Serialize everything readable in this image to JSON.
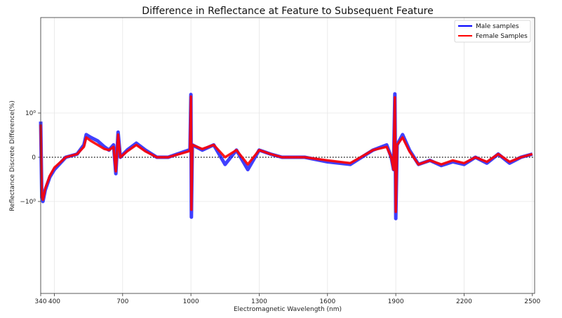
{
  "chart_data": {
    "type": "line",
    "title": "Difference in Reflectance at Feature to Subsequent Feature",
    "xlabel": "Electromagnetic Wavelength (nm)",
    "ylabel": "Reflectance Discrete Difference(%)",
    "x_ticks": [
      340,
      400,
      700,
      1000,
      1300,
      1600,
      1900,
      2200,
      2500
    ],
    "y_ticks": [
      "10⁰",
      "0",
      "−10⁰"
    ],
    "y_scale": "symlog",
    "grid": true,
    "legend_position": "top-right",
    "reference_line": {
      "y": 0,
      "style": "dotted"
    },
    "series": [
      {
        "name": "Male samples",
        "color": "#0000ff",
        "points": [
          [
            340,
            0.6
          ],
          [
            345,
            -0.8
          ],
          [
            350,
            -1.0
          ],
          [
            360,
            -0.5
          ],
          [
            380,
            -0.2
          ],
          [
            400,
            -0.1
          ],
          [
            450,
            0.0
          ],
          [
            500,
            0.02
          ],
          [
            530,
            0.1
          ],
          [
            540,
            0.25
          ],
          [
            560,
            0.2
          ],
          [
            590,
            0.15
          ],
          [
            620,
            0.08
          ],
          [
            640,
            0.05
          ],
          [
            660,
            0.1
          ],
          [
            670,
            -0.15
          ],
          [
            680,
            0.3
          ],
          [
            690,
            0.0
          ],
          [
            720,
            0.05
          ],
          [
            760,
            0.12
          ],
          [
            800,
            0.05
          ],
          [
            850,
            0.0
          ],
          [
            900,
            0.0
          ],
          [
            990,
            0.05
          ],
          [
            996,
            0.05
          ],
          [
            1000,
            2.8
          ],
          [
            1002,
            -2.4
          ],
          [
            1006,
            0.1
          ],
          [
            1050,
            0.05
          ],
          [
            1100,
            0.1
          ],
          [
            1150,
            -0.05
          ],
          [
            1200,
            0.05
          ],
          [
            1250,
            -0.1
          ],
          [
            1300,
            0.05
          ],
          [
            1350,
            0.02
          ],
          [
            1400,
            0.0
          ],
          [
            1450,
            0.0
          ],
          [
            1500,
            0.0
          ],
          [
            1600,
            -0.03
          ],
          [
            1700,
            -0.05
          ],
          [
            1800,
            0.05
          ],
          [
            1860,
            0.1
          ],
          [
            1880,
            0.0
          ],
          [
            1890,
            -0.1
          ],
          [
            1896,
            2.9
          ],
          [
            1900,
            -2.6
          ],
          [
            1906,
            0.1
          ],
          [
            1930,
            0.25
          ],
          [
            1960,
            0.05
          ],
          [
            2000,
            -0.05
          ],
          [
            2050,
            -0.02
          ],
          [
            2100,
            -0.06
          ],
          [
            2150,
            -0.03
          ],
          [
            2200,
            -0.05
          ],
          [
            2250,
            0.0
          ],
          [
            2300,
            -0.04
          ],
          [
            2350,
            0.02
          ],
          [
            2400,
            -0.04
          ],
          [
            2450,
            0.0
          ],
          [
            2500,
            0.02
          ]
        ]
      },
      {
        "name": "Female Samples",
        "color": "#ff0000",
        "points": [
          [
            340,
            0.5
          ],
          [
            345,
            -0.7
          ],
          [
            350,
            -0.9
          ],
          [
            360,
            -0.45
          ],
          [
            380,
            -0.18
          ],
          [
            400,
            -0.08
          ],
          [
            450,
            0.0
          ],
          [
            500,
            0.02
          ],
          [
            530,
            0.08
          ],
          [
            540,
            0.2
          ],
          [
            560,
            0.15
          ],
          [
            590,
            0.1
          ],
          [
            620,
            0.06
          ],
          [
            640,
            0.05
          ],
          [
            660,
            0.08
          ],
          [
            670,
            -0.12
          ],
          [
            680,
            0.25
          ],
          [
            690,
            0.0
          ],
          [
            720,
            0.04
          ],
          [
            760,
            0.1
          ],
          [
            800,
            0.04
          ],
          [
            850,
            0.0
          ],
          [
            900,
            0.0
          ],
          [
            990,
            0.04
          ],
          [
            996,
            0.05
          ],
          [
            1000,
            2.5
          ],
          [
            1002,
            -1.6
          ],
          [
            1006,
            0.1
          ],
          [
            1050,
            0.06
          ],
          [
            1100,
            0.1
          ],
          [
            1150,
            0.0
          ],
          [
            1200,
            0.05
          ],
          [
            1250,
            -0.05
          ],
          [
            1300,
            0.05
          ],
          [
            1350,
            0.02
          ],
          [
            1400,
            0.0
          ],
          [
            1450,
            0.0
          ],
          [
            1500,
            0.0
          ],
          [
            1600,
            -0.02
          ],
          [
            1700,
            -0.04
          ],
          [
            1800,
            0.05
          ],
          [
            1860,
            0.08
          ],
          [
            1880,
            0.0
          ],
          [
            1890,
            -0.1
          ],
          [
            1896,
            2.4
          ],
          [
            1900,
            -1.8
          ],
          [
            1906,
            0.1
          ],
          [
            1930,
            0.2
          ],
          [
            1960,
            0.04
          ],
          [
            2000,
            -0.05
          ],
          [
            2050,
            -0.02
          ],
          [
            2100,
            -0.05
          ],
          [
            2150,
            -0.02
          ],
          [
            2200,
            -0.04
          ],
          [
            2250,
            0.0
          ],
          [
            2300,
            -0.03
          ],
          [
            2350,
            0.02
          ],
          [
            2400,
            -0.03
          ],
          [
            2450,
            0.0
          ],
          [
            2500,
            0.02
          ]
        ]
      }
    ]
  }
}
